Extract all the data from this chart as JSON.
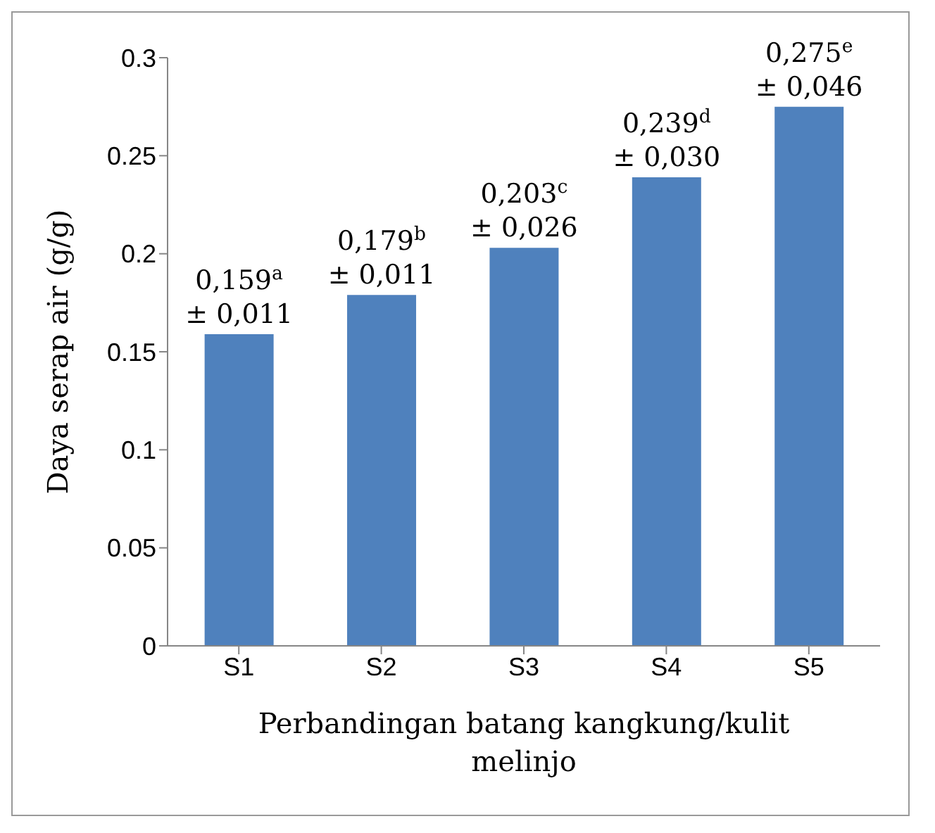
{
  "chart_data": {
    "type": "bar",
    "xlabel": "Perbandingan batang kangkung/kulit melinjo",
    "ylabel": "Daya serap air (g/g)",
    "categories": [
      "S1",
      "S2",
      "S3",
      "S4",
      "S5"
    ],
    "values": [
      0.159,
      0.179,
      0.203,
      0.239,
      0.275
    ],
    "value_labels": [
      "0,159$^{a}$\n± 0,011",
      "0,179$^{b}$\n± 0,011",
      "0,203$^{c}$\n± 0,026",
      "0,239$^{d}$\n± 0,030",
      "0,275$^{e}$\n± 0,046"
    ],
    "color": "#4f81bd",
    "ylim": [
      0,
      0.3
    ],
    "yticks": [
      0,
      0.05,
      0.1,
      0.15,
      0.2,
      0.25,
      0.3
    ],
    "grid": false,
    "legend": false
  }
}
